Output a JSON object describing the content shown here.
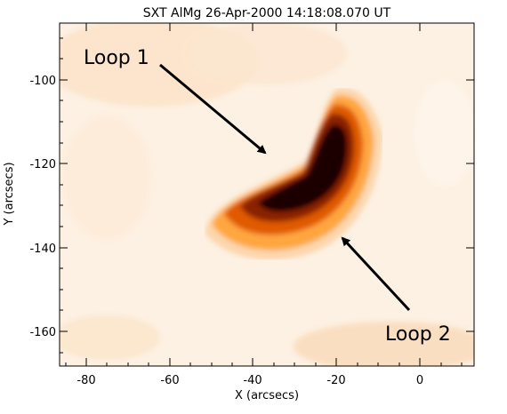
{
  "title": "SXT AlMg 26-Apr-2000 14:18:08.070 UT",
  "xlabel": "X (arcsecs)",
  "ylabel": "Y (arcsecs)",
  "x_ticks": [
    "-80",
    "-60",
    "-40",
    "-20",
    "0"
  ],
  "y_ticks": [
    "-100",
    "-120",
    "-140",
    "-160"
  ],
  "annotations": {
    "loop1": "Loop 1",
    "loop2": "Loop 2"
  },
  "colors": {
    "background_glow": "#fbe6cf",
    "loop_core": "#1a0500",
    "loop_mid": "#b33a00",
    "loop_edge": "#ff8a1a",
    "arrow": "#000000"
  }
}
